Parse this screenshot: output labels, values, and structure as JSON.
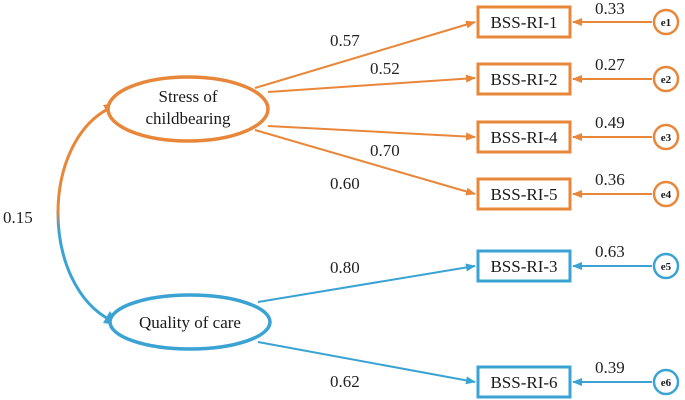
{
  "colors": {
    "orange": "#e8873a",
    "blue": "#3aa3d4",
    "text": "#1a1a1a"
  },
  "latents": {
    "stress": {
      "line1": "Stress of",
      "line2": "childbearing"
    },
    "quality": {
      "label": "Quality of care"
    }
  },
  "covariance": {
    "value": "0.15"
  },
  "indicators": [
    {
      "label": "BSS-RI-1",
      "loading": "0.57",
      "error": "e1",
      "error_value": "0.33"
    },
    {
      "label": "BSS-RI-2",
      "loading": "0.52",
      "error": "e2",
      "error_value": "0.27"
    },
    {
      "label": "BSS-RI-4",
      "loading": "0.70",
      "error": "e3",
      "error_value": "0.49"
    },
    {
      "label": "BSS-RI-5",
      "loading": "0.60",
      "error": "e4",
      "error_value": "0.36"
    },
    {
      "label": "BSS-RI-3",
      "loading": "0.80",
      "error": "e5",
      "error_value": "0.63"
    },
    {
      "label": "BSS-RI-6",
      "loading": "0.62",
      "error": "e6",
      "error_value": "0.39"
    }
  ]
}
